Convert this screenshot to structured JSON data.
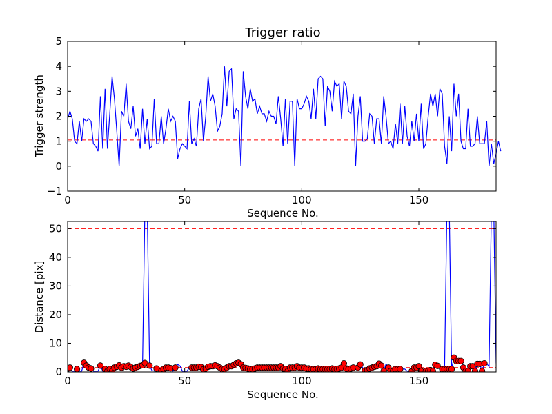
{
  "chart_data": [
    {
      "type": "line",
      "title": "Trigger ratio",
      "xlabel": "Sequence No.",
      "ylabel": "Trigger strength",
      "xlim": [
        0,
        183
      ],
      "ylim": [
        -1,
        5
      ],
      "x_ticks": [
        "0",
        "50",
        "100",
        "150"
      ],
      "y_ticks": [
        "−1",
        "0",
        "1",
        "2",
        "3",
        "4",
        "5"
      ],
      "threshold": 1.05,
      "line_color": "#0000ff",
      "threshold_color": "#ff0000",
      "series": [
        {
          "values": [
            1.9,
            2.2,
            1.9,
            1.0,
            0.9,
            1.8,
            1.0,
            1.9,
            1.8,
            1.9,
            1.8,
            0.9,
            0.8,
            0.6,
            2.8,
            0.7,
            3.1,
            0.7,
            2.1,
            3.6,
            2.7,
            1.4,
            0.0,
            2.2,
            2.0,
            3.3,
            1.8,
            1.5,
            2.4,
            1.2,
            1.5,
            0.7,
            2.3,
            0.9,
            1.9,
            0.7,
            0.8,
            2.7,
            0.9,
            0.9,
            2.0,
            0.9,
            1.5,
            2.3,
            1.8,
            2.0,
            1.8,
            0.3,
            0.7,
            0.9,
            0.8,
            0.7,
            2.6,
            0.9,
            1.1,
            0.8,
            2.3,
            2.7,
            1.0,
            2.0,
            3.6,
            2.6,
            2.9,
            2.4,
            1.4,
            1.6,
            2.1,
            4.0,
            2.4,
            3.8,
            3.9,
            1.9,
            2.3,
            2.2,
            0.0,
            3.8,
            2.8,
            2.3,
            3.1,
            2.6,
            2.7,
            2.1,
            2.4,
            2.1,
            2.1,
            1.8,
            2.2,
            2.0,
            2.0,
            1.7,
            2.8,
            1.9,
            0.8,
            2.7,
            0.9,
            2.6,
            2.6,
            0.0,
            2.7,
            2.3,
            2.3,
            2.5,
            2.8,
            2.6,
            1.9,
            3.1,
            1.9,
            3.5,
            3.6,
            3.5,
            1.6,
            3.2,
            3.0,
            2.2,
            3.4,
            3.2,
            3.3,
            1.9,
            3.4,
            3.2,
            2.2,
            2.1,
            2.9,
            0.0,
            2.0,
            2.8,
            1.0,
            1.0,
            1.1,
            2.1,
            2.0,
            0.9,
            1.9,
            1.9,
            0.9,
            2.8,
            2.0,
            0.9,
            1.0,
            0.7,
            1.7,
            0.9,
            2.5,
            0.9,
            2.4,
            1.2,
            0.8,
            1.8,
            1.0,
            2.1,
            1.0,
            2.5,
            0.7,
            0.9,
            2.0,
            2.9,
            2.4,
            2.9,
            2.0,
            3.1,
            2.9,
            0.8,
            0.1,
            2.0,
            0.6,
            3.3,
            2.0,
            2.9,
            1.0,
            0.7,
            0.7,
            2.3,
            0.8,
            0.8,
            0.9,
            2.0,
            0.9,
            0.9,
            0.9,
            1.8,
            0.0,
            0.9,
            0.1,
            0.5,
            1.0,
            0.6
          ]
        }
      ]
    },
    {
      "type": "line",
      "title": "",
      "xlabel": "Sequence No.",
      "ylabel": "Distance [pix]",
      "xlim": [
        0,
        183
      ],
      "ylim": [
        0,
        52.5
      ],
      "x_ticks": [
        "0",
        "50",
        "100",
        "150"
      ],
      "y_ticks": [
        "0",
        "10",
        "20",
        "30",
        "40",
        "50"
      ],
      "threshold_upper": 50,
      "threshold_lower": 1.5,
      "line_color": "#0000ff",
      "marker_color": "#ff0000",
      "threshold_color": "#ff0000",
      "series": [
        {
          "values": [
            1.1,
            1.5,
            0.3,
            0.3,
            1.0,
            0.3,
            0.3,
            3.2,
            2.2,
            1.5,
            1.2,
            0.3,
            0.3,
            0.3,
            2.2,
            0.3,
            1.0,
            0.3,
            1.0,
            0.3,
            1.5,
            1.8,
            2.3,
            1.5,
            2.0,
            1.8,
            2.2,
            1.7,
            1.2,
            1.5,
            1.8,
            2.1,
            2.3,
            3.1,
            2.7,
            2.2,
            0.5,
            0.3,
            1.2,
            0.8,
            0.3,
            1.0,
            1.5,
            1.5,
            1.3,
            0.3,
            1.5,
            2.6,
            2.1,
            0.3,
            0.3,
            0.3,
            1.5,
            1.5,
            1.5,
            1.5,
            1.8,
            1.7,
            0.9,
            1.2,
            1.8,
            2.0,
            2.0,
            2.3,
            2.0,
            1.5,
            1.0,
            1.0,
            1.5,
            2.0,
            2.0,
            2.5,
            3.0,
            3.2,
            2.7,
            1.5,
            1.4,
            1.2,
            1.0,
            1.0,
            1.2,
            1.5,
            1.5,
            1.5,
            1.5,
            1.5,
            1.5,
            1.5,
            1.5,
            1.5,
            1.5,
            2.0,
            1.2,
            1.0,
            0.3,
            1.5,
            1.5,
            1.5,
            2.0,
            1.5,
            1.5,
            1.5,
            1.2,
            1.2,
            1.0,
            1.0,
            1.0,
            1.2,
            1.0,
            1.0,
            1.0,
            1.0,
            1.0,
            1.2,
            1.0,
            1.0,
            1.2,
            1.5,
            3.0,
            1.2,
            1.0,
            1.2,
            1.5,
            1.5,
            1.5,
            2.6,
            1.5,
            0.5,
            0.6,
            1.2,
            1.5,
            1.8,
            2.0,
            2.9,
            2.2,
            0.3,
            2.8,
            1.5,
            0.3,
            0.3,
            1.0,
            1.0,
            1.0,
            1.0,
            1.0,
            0.3,
            0.3,
            0.3,
            1.5,
            1.5,
            2.0,
            0.3,
            0.3,
            0.3,
            0.3,
            0.6,
            0.3,
            2.5,
            2.1,
            1.0,
            1.0,
            1.0,
            1.0,
            1.0,
            1.0,
            5.0,
            3.8,
            3.8,
            3.8,
            1.5,
            0.3,
            0.3,
            2.0,
            2.0,
            0.3,
            2.8,
            2.8,
            0.3,
            3.0,
            3.0,
            1.8,
            3.0,
            3.0,
            3.0
          ],
          "spikes_to_top": [
            33,
            34,
            162,
            163,
            181,
            182
          ],
          "marker_indices": [
            0,
            1,
            4,
            7,
            8,
            9,
            10,
            14,
            16,
            17,
            18,
            19,
            20,
            21,
            22,
            23,
            24,
            25,
            26,
            27,
            28,
            29,
            30,
            31,
            32,
            33,
            35,
            38,
            40,
            41,
            42,
            43,
            44,
            46,
            53,
            54,
            55,
            56,
            57,
            58,
            59,
            60,
            61,
            62,
            63,
            64,
            65,
            66,
            67,
            68,
            69,
            70,
            71,
            72,
            73,
            74,
            75,
            76,
            77,
            78,
            79,
            80,
            81,
            82,
            83,
            84,
            85,
            86,
            87,
            88,
            89,
            90,
            91,
            92,
            93,
            94,
            95,
            96,
            97,
            98,
            99,
            100,
            101,
            102,
            103,
            104,
            105,
            106,
            107,
            108,
            109,
            110,
            111,
            112,
            113,
            114,
            115,
            116,
            117,
            118,
            119,
            120,
            121,
            122,
            124,
            125,
            127,
            128,
            129,
            130,
            131,
            132,
            133,
            134,
            135,
            137,
            138,
            139,
            140,
            141,
            142,
            147,
            148,
            149,
            150,
            151,
            153,
            154,
            155,
            156,
            157,
            158,
            160,
            161,
            162,
            163,
            164,
            165,
            166,
            167,
            168,
            169,
            170,
            171,
            172,
            173,
            174,
            175,
            176,
            177,
            178
          ]
        }
      ]
    }
  ]
}
